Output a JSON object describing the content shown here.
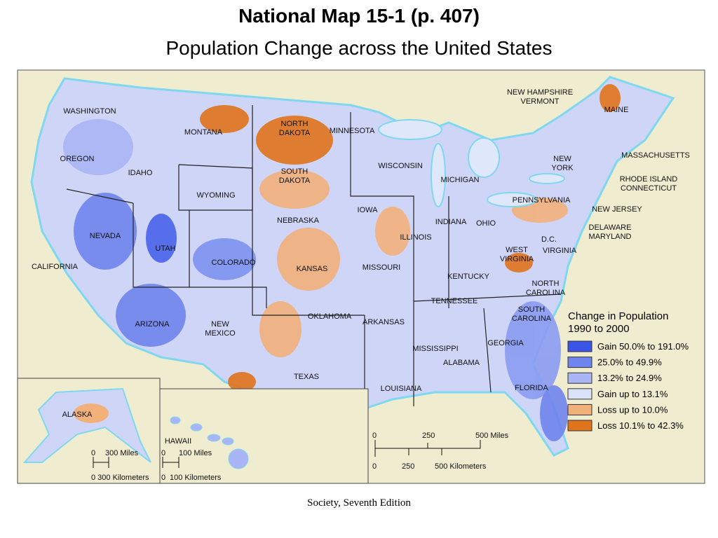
{
  "header": {
    "title": "National Map 15-1  (p. 407)",
    "subtitle": "Population Change across the United States"
  },
  "map": {
    "labels": [
      [
        "WASHINGTON"
      ],
      [
        "OREGON"
      ],
      [
        "IDAHO"
      ],
      [
        "MONTANA"
      ],
      [
        "NORTH",
        "DAKOTA"
      ],
      [
        "MINNESOTA"
      ],
      [
        "SOUTH",
        "DAKOTA"
      ],
      [
        "WYOMING"
      ],
      [
        "WISCONSIN"
      ],
      [
        "MICHIGAN"
      ],
      [
        "IOWA"
      ],
      [
        "NEBRASKA"
      ],
      [
        "NEVADA"
      ],
      [
        "UTAH"
      ],
      [
        "COLORADO"
      ],
      [
        "ILLINOIS"
      ],
      [
        "INDIANA"
      ],
      [
        "OHIO"
      ],
      [
        "PENNSYLVANIA"
      ],
      [
        "NEW",
        "YORK"
      ],
      [
        "KANSAS"
      ],
      [
        "MISSOURI"
      ],
      [
        "CALIFORNIA"
      ],
      [
        "WEST",
        "VIRGINIA"
      ],
      [
        "KENTUCKY"
      ],
      [
        "D.C."
      ],
      [
        "VIRGINIA"
      ],
      [
        "NORTH",
        "CAROLINA"
      ],
      [
        "TENNESSEE"
      ],
      [
        "SOUTH",
        "CAROLINA"
      ],
      [
        "OKLAHOMA"
      ],
      [
        "ARKANSAS"
      ],
      [
        "ARIZONA"
      ],
      [
        "NEW",
        "MEXICO"
      ],
      [
        "GEORGIA"
      ],
      [
        "MISSISSIPPI"
      ],
      [
        "ALABAMA"
      ],
      [
        "TEXAS"
      ],
      [
        "LOUISIANA"
      ],
      [
        "FLORIDA"
      ],
      [
        "ALASKA"
      ],
      [
        "HAWAII"
      ],
      [
        "NEW HAMPSHIRE",
        "VERMONT"
      ],
      [
        "MAINE"
      ],
      [
        "MASSACHUSETTS"
      ],
      [
        "RHODE ISLAND",
        "CONNECTICUT"
      ],
      [
        "NEW JERSEY"
      ],
      [
        "DELAWARE",
        "MARYLAND"
      ]
    ]
  },
  "legend": {
    "title": [
      "Change in Population",
      "1990 to 2000"
    ],
    "items": [
      {
        "label": "Gain 50.0% to 191.0%",
        "color": "#3a55e8"
      },
      {
        "label": "25.0% to 49.9%",
        "color": "#6f85ee"
      },
      {
        "label": "13.2% to 24.9%",
        "color": "#a9b5f4"
      },
      {
        "label": "Gain up to 13.1%",
        "color": "#dde2fb"
      },
      {
        "label": "Loss up to 10.0%",
        "color": "#f2b07a"
      },
      {
        "label": "Loss 10.1% to 42.3%",
        "color": "#e0741d"
      }
    ]
  },
  "scales": {
    "main_miles": [
      "0",
      "250",
      "500 Miles"
    ],
    "main_km": [
      "0",
      "250",
      "500 Kilometers"
    ],
    "alaska_miles": [
      "0",
      "300 Miles"
    ],
    "alaska_km": [
      "0 300 Kilometers"
    ],
    "hawaii_miles": [
      "0",
      "100 Miles"
    ],
    "hawaii_km": [
      "0",
      "100 Kilometers"
    ]
  },
  "footer": "Society, Seventh Edition"
}
